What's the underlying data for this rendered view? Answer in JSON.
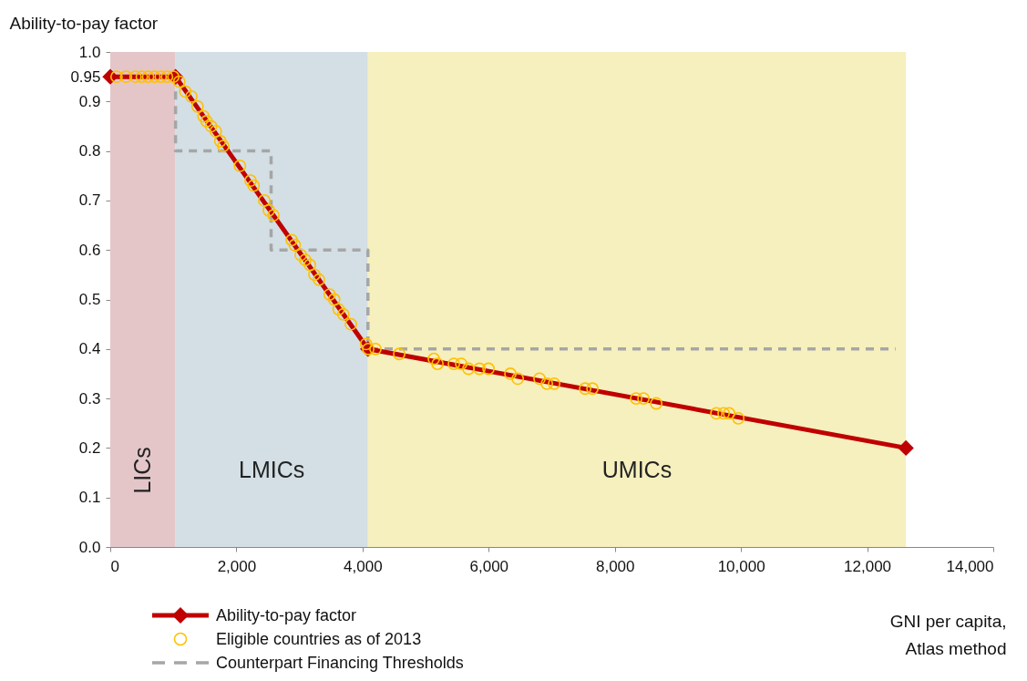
{
  "chart_data": {
    "type": "line",
    "xlabel": "GNI per capita, Atlas method",
    "ylabel": "Ability-to-pay factor",
    "xlim": [
      0,
      14000
    ],
    "ylim": [
      0,
      1
    ],
    "xticks": [
      0,
      {
        "value": 2000,
        "label": "2,000"
      },
      {
        "value": 4000,
        "label": "4,000"
      },
      {
        "value": 6000,
        "label": "6,000"
      },
      {
        "value": 8000,
        "label": "8,000"
      },
      {
        "value": 10000,
        "label": "10,000"
      },
      {
        "value": 12000,
        "label": "12,000"
      },
      {
        "value": 14000,
        "label": "14,000"
      }
    ],
    "yticks": [
      {
        "value": 0,
        "label": "0.0"
      },
      0.1,
      0.2,
      0.3,
      0.4,
      0.5,
      0.6,
      0.7,
      0.8,
      0.9,
      0.95,
      {
        "value": 1,
        "label": "1.0"
      }
    ],
    "legend": "bottom left",
    "bands": [
      {
        "axis": "x",
        "from": 0,
        "to": 1035,
        "label": "LICs",
        "color": "#e4c6c9"
      },
      {
        "axis": "x",
        "from": 1035,
        "to": 4085,
        "label": "LMICs",
        "color": "#d3dfe5"
      },
      {
        "axis": "x",
        "from": 4085,
        "to": 12615,
        "label": "UMICs",
        "color": "#f6efbe"
      }
    ],
    "series": [
      {
        "name": "Counterpart Financing Thresholds",
        "line_style": "dashed",
        "color": "#a6a6a6",
        "x": [
          1035,
          1035,
          2550,
          2550,
          4085,
          4085,
          12450
        ],
        "values": [
          0.95,
          0.8,
          0.8,
          0.6,
          0.6,
          0.4,
          0.4
        ]
      },
      {
        "name": "Ability-to-pay factor",
        "marker": "diamond",
        "color": "#c00000",
        "x": [
          0,
          1035,
          4085,
          12615
        ],
        "values": [
          0.95,
          0.95,
          0.4,
          0.2
        ]
      },
      {
        "name": "Eligible countries as of 2013",
        "type": "scatter",
        "marker": "circle",
        "color": "#ffc000",
        "x": [
          100,
          250,
          400,
          500,
          600,
          700,
          800,
          900,
          1000,
          1094,
          1190,
          1286,
          1383,
          1479,
          1527,
          1599,
          1672,
          1744,
          1792,
          2056,
          2225,
          2273,
          2442,
          2514,
          2587,
          2876,
          2924,
          3020,
          3092,
          3165,
          3237,
          3309,
          3478,
          3550,
          3622,
          3695,
          3815,
          4056,
          4090,
          4205,
          4581,
          5130,
          5188,
          5448,
          5564,
          5679,
          5853,
          5997,
          6344,
          6460,
          6806,
          6922,
          7038,
          7529,
          7645,
          8338,
          8454,
          8656,
          9610,
          9725,
          9812,
          9957
        ],
        "values": [
          0.95,
          0.95,
          0.95,
          0.95,
          0.95,
          0.95,
          0.95,
          0.95,
          0.95,
          0.94,
          0.92,
          0.91,
          0.89,
          0.87,
          0.86,
          0.85,
          0.84,
          0.82,
          0.81,
          0.77,
          0.74,
          0.73,
          0.7,
          0.68,
          0.67,
          0.62,
          0.61,
          0.59,
          0.58,
          0.57,
          0.55,
          0.54,
          0.51,
          0.5,
          0.48,
          0.47,
          0.45,
          0.41,
          0.4,
          0.4,
          0.39,
          0.38,
          0.37,
          0.37,
          0.37,
          0.36,
          0.36,
          0.36,
          0.35,
          0.34,
          0.34,
          0.33,
          0.33,
          0.32,
          0.32,
          0.3,
          0.3,
          0.29,
          0.27,
          0.27,
          0.27,
          0.26
        ]
      }
    ]
  }
}
